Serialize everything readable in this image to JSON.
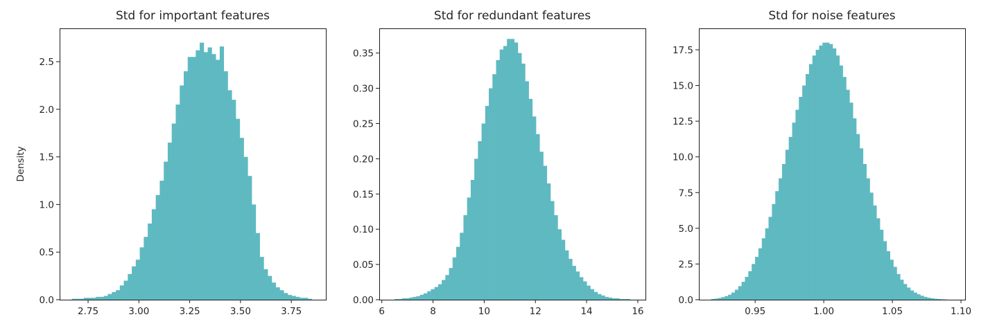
{
  "colors": {
    "bar": "#5fb9c1",
    "axis": "#1a1a1a",
    "text": "#262626"
  },
  "chart_data": [
    {
      "type": "bar",
      "title": "Std for important features",
      "xlabel": "",
      "ylabel": "Density",
      "xlim": [
        2.61,
        3.92
      ],
      "ylim": [
        0,
        2.85
      ],
      "xticks": [
        2.75,
        3.0,
        3.25,
        3.5,
        3.75
      ],
      "xtick_labels": [
        "2.75",
        "3.00",
        "3.25",
        "3.50",
        "3.75"
      ],
      "yticks": [
        0,
        0.5,
        1.0,
        1.5,
        2.0,
        2.5
      ],
      "ytick_labels": [
        "0.0",
        "0.5",
        "1.0",
        "1.5",
        "2.0",
        "2.5"
      ],
      "bin_edges_range": [
        2.67,
        3.85
      ],
      "values": [
        0.01,
        0.01,
        0.01,
        0.02,
        0.02,
        0.02,
        0.03,
        0.03,
        0.04,
        0.06,
        0.08,
        0.1,
        0.15,
        0.2,
        0.27,
        0.35,
        0.42,
        0.55,
        0.66,
        0.8,
        0.95,
        1.1,
        1.25,
        1.45,
        1.65,
        1.85,
        2.05,
        2.25,
        2.4,
        2.55,
        2.55,
        2.62,
        2.7,
        2.6,
        2.65,
        2.58,
        2.52,
        2.66,
        2.4,
        2.2,
        2.1,
        1.9,
        1.7,
        1.5,
        1.3,
        1.0,
        0.7,
        0.45,
        0.32,
        0.25,
        0.18,
        0.13,
        0.1,
        0.07,
        0.05,
        0.04,
        0.03,
        0.02,
        0.02,
        0.01
      ]
    },
    {
      "type": "bar",
      "title": "Std for redundant features",
      "xlabel": "",
      "ylabel": "",
      "xlim": [
        5.9,
        16.3
      ],
      "ylim": [
        0,
        0.385
      ],
      "xticks": [
        6,
        8,
        10,
        12,
        14,
        16
      ],
      "xtick_labels": [
        "6",
        "8",
        "10",
        "12",
        "14",
        "16"
      ],
      "yticks": [
        0,
        0.05,
        0.1,
        0.15,
        0.2,
        0.25,
        0.3,
        0.35
      ],
      "ytick_labels": [
        "0.00",
        "0.05",
        "0.10",
        "0.15",
        "0.20",
        "0.25",
        "0.30",
        "0.35"
      ],
      "bin_edges_range": [
        6.5,
        15.7
      ],
      "values": [
        0.001,
        0.001,
        0.002,
        0.002,
        0.003,
        0.004,
        0.005,
        0.007,
        0.009,
        0.012,
        0.015,
        0.018,
        0.022,
        0.028,
        0.035,
        0.045,
        0.06,
        0.075,
        0.095,
        0.12,
        0.145,
        0.17,
        0.2,
        0.225,
        0.25,
        0.275,
        0.3,
        0.32,
        0.34,
        0.355,
        0.36,
        0.37,
        0.37,
        0.365,
        0.35,
        0.335,
        0.31,
        0.285,
        0.26,
        0.235,
        0.21,
        0.19,
        0.165,
        0.14,
        0.12,
        0.1,
        0.085,
        0.07,
        0.058,
        0.048,
        0.04,
        0.032,
        0.026,
        0.02,
        0.015,
        0.011,
        0.008,
        0.006,
        0.004,
        0.003,
        0.002,
        0.002,
        0.001,
        0.001,
        0.001
      ]
    },
    {
      "type": "bar",
      "title": "Std for noise features",
      "xlabel": "",
      "ylabel": "",
      "xlim": [
        0.909,
        1.103
      ],
      "ylim": [
        0,
        19.0
      ],
      "xticks": [
        0.95,
        1.0,
        1.05,
        1.1
      ],
      "xtick_labels": [
        "0.95",
        "1.00",
        "1.05",
        "1.10"
      ],
      "yticks": [
        0,
        2.5,
        5.0,
        7.5,
        10.0,
        12.5,
        15.0,
        17.5
      ],
      "ytick_labels": [
        "0.0",
        "2.5",
        "5.0",
        "7.5",
        "10.0",
        "12.5",
        "15.0",
        "17.5"
      ],
      "bin_edges_range": [
        0.918,
        1.09
      ],
      "values": [
        0.05,
        0.08,
        0.12,
        0.18,
        0.25,
        0.35,
        0.5,
        0.7,
        0.95,
        1.25,
        1.6,
        2.0,
        2.5,
        3.0,
        3.6,
        4.3,
        5.0,
        5.8,
        6.7,
        7.6,
        8.5,
        9.5,
        10.5,
        11.4,
        12.4,
        13.3,
        14.2,
        15.0,
        15.8,
        16.5,
        17.1,
        17.5,
        17.8,
        18.0,
        18.0,
        17.9,
        17.6,
        17.1,
        16.4,
        15.6,
        14.7,
        13.8,
        12.7,
        11.6,
        10.6,
        9.5,
        8.5,
        7.5,
        6.6,
        5.7,
        4.9,
        4.1,
        3.4,
        2.8,
        2.3,
        1.8,
        1.4,
        1.1,
        0.85,
        0.65,
        0.5,
        0.38,
        0.28,
        0.2,
        0.14,
        0.1,
        0.07,
        0.05,
        0.03,
        0.02
      ]
    }
  ]
}
